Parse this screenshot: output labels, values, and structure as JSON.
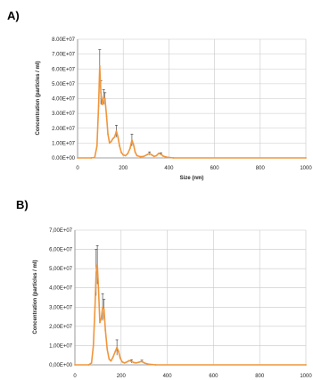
{
  "chart_data": [
    {
      "panel": "A)",
      "type": "line",
      "xlabel": "Size (nm)",
      "ylabel": "Concentration (particles / ml)",
      "xlim": [
        0,
        1000
      ],
      "ylim": [
        0,
        80000000
      ],
      "x_ticks": [
        "0",
        "200",
        "400",
        "600",
        "800",
        "1000"
      ],
      "y_ticks": [
        "0.00E+00",
        "1.00E+07",
        "2.00E+07",
        "3.00E+07",
        "4.00E+07",
        "5.00E+07",
        "6.00E+07",
        "7.00E+07",
        "8.00E+07"
      ],
      "grid": true,
      "series": [
        {
          "color": "#f0963c",
          "points": [
            [
              0,
              0
            ],
            [
              60,
              0
            ],
            [
              75,
              300000
            ],
            [
              85,
              8000000
            ],
            [
              92,
              35000000
            ],
            [
              97,
              62000000
            ],
            [
              102,
              44000000
            ],
            [
              108,
              36000000
            ],
            [
              114,
              41000000
            ],
            [
              120,
              40000000
            ],
            [
              127,
              28000000
            ],
            [
              133,
              16000000
            ],
            [
              140,
              10000000
            ],
            [
              147,
              11000000
            ],
            [
              155,
              13000000
            ],
            [
              162,
              14000000
            ],
            [
              170,
              18000000
            ],
            [
              177,
              14000000
            ],
            [
              184,
              8000000
            ],
            [
              192,
              3500000
            ],
            [
              200,
              2000000
            ],
            [
              210,
              1500000
            ],
            [
              220,
              3000000
            ],
            [
              230,
              6500000
            ],
            [
              238,
              12000000
            ],
            [
              245,
              9000000
            ],
            [
              252,
              4000000
            ],
            [
              260,
              1500000
            ],
            [
              275,
              800000
            ],
            [
              290,
              1000000
            ],
            [
              305,
              2200000
            ],
            [
              315,
              3000000
            ],
            [
              325,
              2000000
            ],
            [
              335,
              1000000
            ],
            [
              345,
              1500000
            ],
            [
              355,
              3000000
            ],
            [
              365,
              2600000
            ],
            [
              375,
              1200000
            ],
            [
              390,
              500000
            ],
            [
              420,
              0
            ],
            [
              1000,
              0
            ]
          ],
          "errors": [
            [
              97,
              11000000
            ],
            [
              102,
              8000000
            ],
            [
              114,
              5000000
            ],
            [
              120,
              4000000
            ],
            [
              170,
              4000000
            ],
            [
              238,
              4000000
            ],
            [
              315,
              1000000
            ],
            [
              365,
              800000
            ]
          ]
        }
      ]
    },
    {
      "panel": "B)",
      "type": "line",
      "xlabel": "",
      "ylabel": "Concentration (particles / ml)",
      "xlim": [
        0,
        1000
      ],
      "ylim": [
        0,
        70000000
      ],
      "x_ticks": [
        "0",
        "200",
        "400",
        "600",
        "800",
        "1000"
      ],
      "y_ticks": [
        "0,00E+00",
        "1,00E+07",
        "2,00E+07",
        "3,00E+07",
        "4,00E+07",
        "5,00E+07",
        "6,00E+07",
        "7,00E+07"
      ],
      "grid": true,
      "series": [
        {
          "color": "#f0963c",
          "points": [
            [
              0,
              0
            ],
            [
              60,
              0
            ],
            [
              72,
              1000000
            ],
            [
              80,
              10000000
            ],
            [
              87,
              30000000
            ],
            [
              92,
              48000000
            ],
            [
              97,
              52000000
            ],
            [
              102,
              40000000
            ],
            [
              108,
              22000000
            ],
            [
              114,
              24000000
            ],
            [
              120,
              30000000
            ],
            [
              126,
              29000000
            ],
            [
              132,
              18000000
            ],
            [
              140,
              8000000
            ],
            [
              148,
              3000000
            ],
            [
              156,
              2000000
            ],
            [
              165,
              4000000
            ],
            [
              175,
              7000000
            ],
            [
              182,
              9000000
            ],
            [
              189,
              7000000
            ],
            [
              196,
              3500000
            ],
            [
              205,
              1500000
            ],
            [
              215,
              1000000
            ],
            [
              225,
              1500000
            ],
            [
              235,
              2200000
            ],
            [
              245,
              1800000
            ],
            [
              255,
              1200000
            ],
            [
              265,
              1000000
            ],
            [
              278,
              1400000
            ],
            [
              290,
              1800000
            ],
            [
              300,
              1000000
            ],
            [
              320,
              300000
            ],
            [
              350,
              0
            ],
            [
              1000,
              0
            ]
          ],
          "errors": [
            [
              92,
              12000000
            ],
            [
              97,
              10000000
            ],
            [
              120,
              7000000
            ],
            [
              126,
              5000000
            ],
            [
              182,
              4000000
            ],
            [
              245,
              800000
            ],
            [
              290,
              600000
            ]
          ]
        }
      ]
    }
  ]
}
